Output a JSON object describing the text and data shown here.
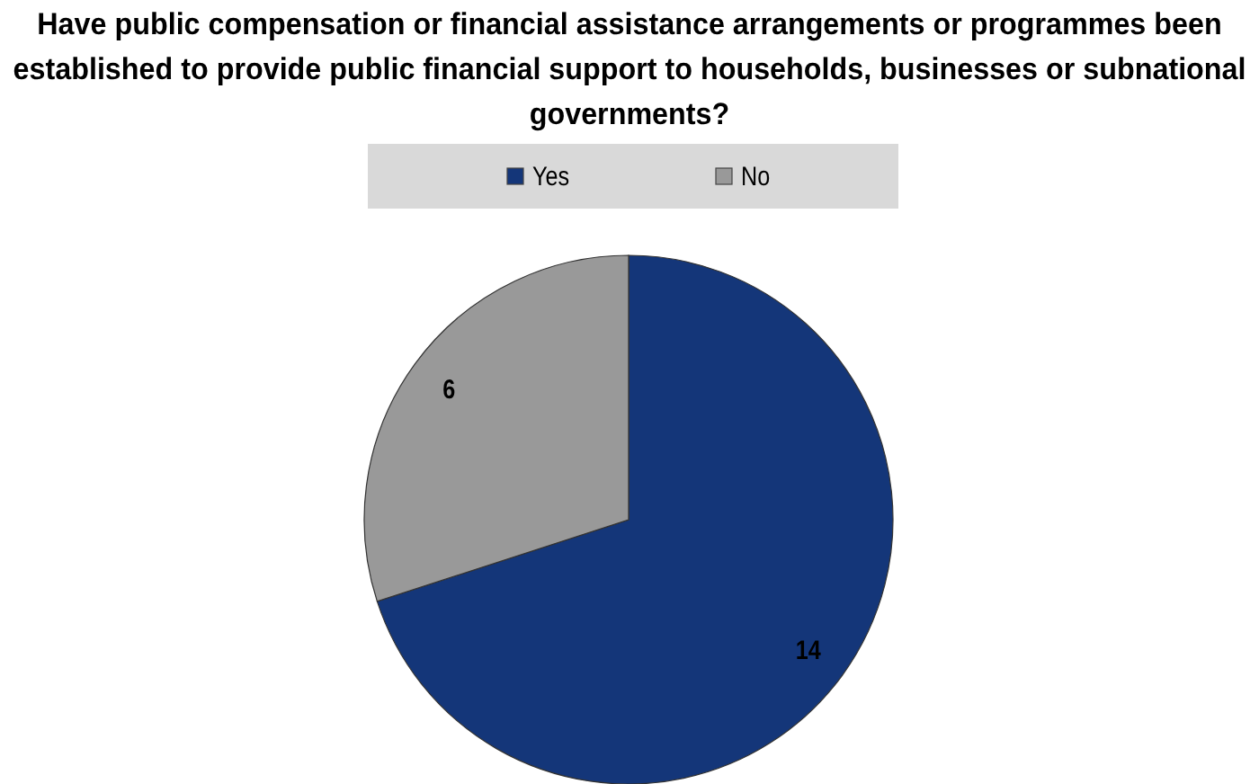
{
  "chart_data": {
    "type": "pie",
    "title": "Have public compensation or financial assistance arrangements or programmes been established to provide public financial support to households, businesses or subnational governments?",
    "categories": [
      "Yes",
      "No"
    ],
    "values": [
      14,
      6
    ],
    "colors": [
      "#143679",
      "#999999"
    ],
    "data_labels": true,
    "legend": "top"
  }
}
